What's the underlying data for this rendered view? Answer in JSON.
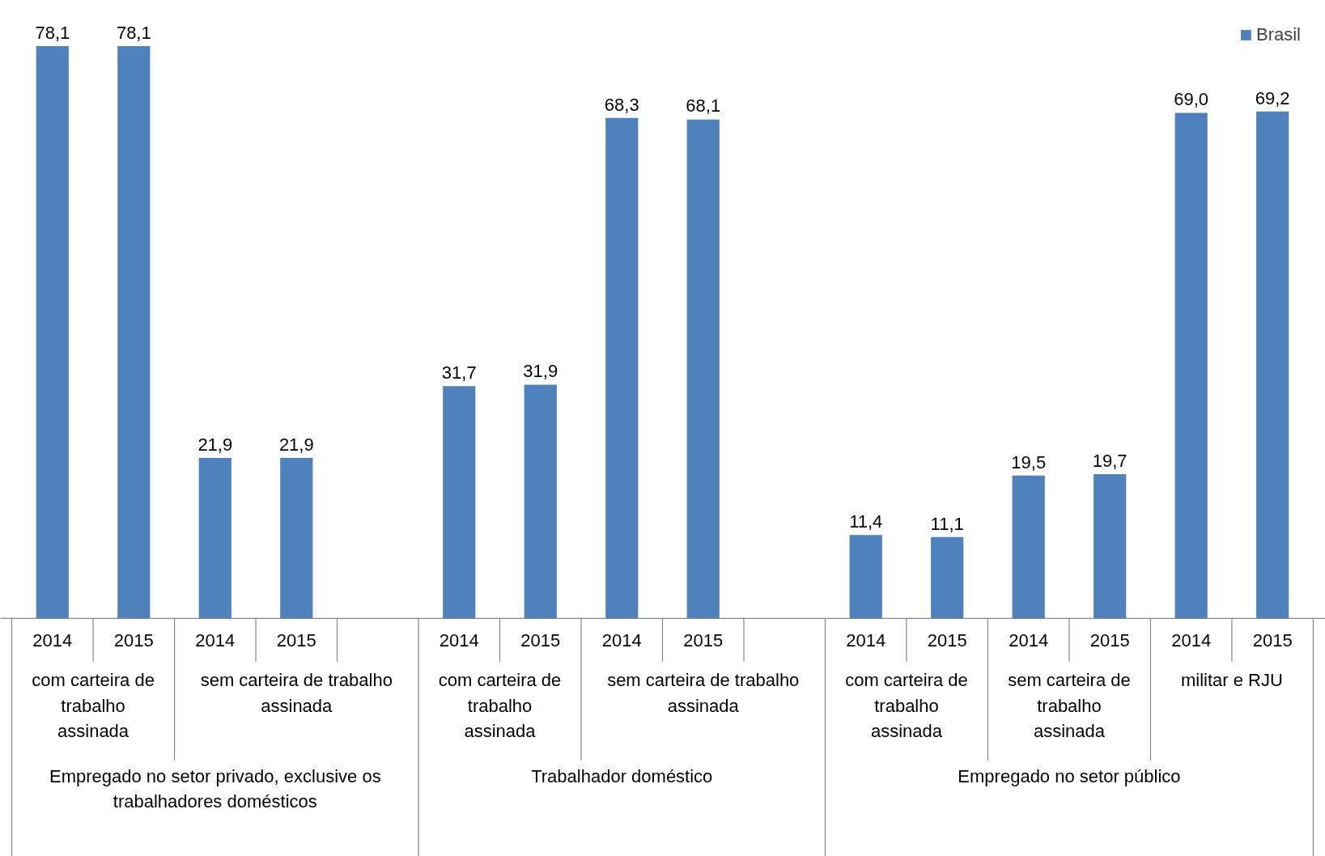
{
  "chart_data": {
    "type": "bar",
    "categories": [
      "2014",
      "2015",
      "2014",
      "2015",
      null,
      "2014",
      "2015",
      "2014",
      "2015",
      null,
      "2014",
      "2015",
      "2014",
      "2015",
      "2014",
      "2015"
    ],
    "series": [
      {
        "name": "Brasil",
        "color": "#4f81bd",
        "values": [
          78.1,
          78.1,
          21.9,
          21.9,
          null,
          31.7,
          31.9,
          68.3,
          68.1,
          null,
          11.4,
          11.1,
          19.5,
          19.7,
          69.0,
          69.2
        ],
        "value_labels": [
          "78,1",
          "78,1",
          "21,9",
          "21,9",
          null,
          "31,7",
          "31,9",
          "68,3",
          "68,1",
          null,
          "11,4",
          "11,1",
          "19,5",
          "19,7",
          "69,0",
          "69,2"
        ]
      }
    ],
    "annotations": [
      "com carteira de trabalho assinada",
      "sem carteira de trabalho assinada",
      "com carteira de trabalho assinada",
      "sem carteira de trabalho assinada",
      "com carteira de trabalho assinada",
      "sem carteira de trabalho assinada",
      "militar e RJU",
      "Empregado no setor privado, exclusive os trabalhadores domésticos",
      "Trabalhador doméstico",
      "Empregado no setor público"
    ],
    "grid": false,
    "legend": "top right"
  }
}
